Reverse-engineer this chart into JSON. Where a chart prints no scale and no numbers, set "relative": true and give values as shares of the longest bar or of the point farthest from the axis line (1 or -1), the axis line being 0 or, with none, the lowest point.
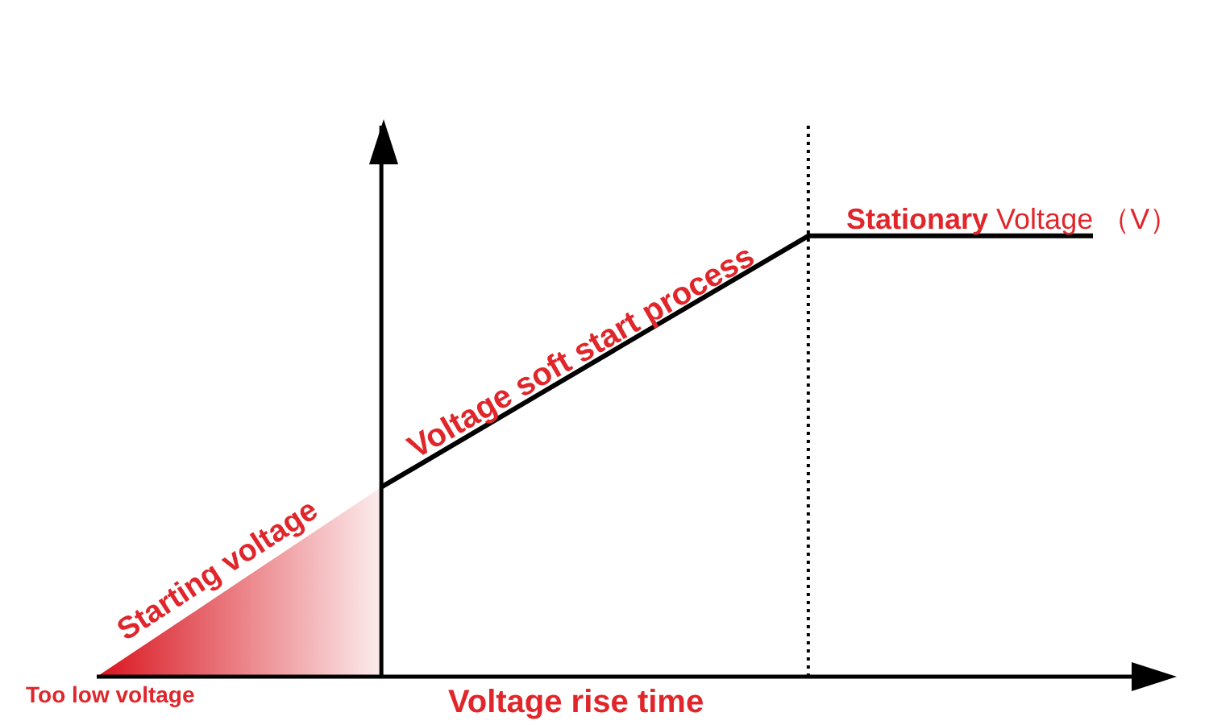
{
  "chart_data": {
    "type": "line",
    "relative": true,
    "xlabel": "Voltage rise time",
    "categories": [
      null,
      null,
      null,
      null,
      null,
      null,
      null,
      null
    ],
    "series": [
      {
        "type": "area",
        "color": "#d9141e",
        "values": [
          0,
          0.215,
          0.43,
          null,
          null,
          null,
          null,
          null
        ]
      },
      {
        "color": "#000000",
        "values": [
          null,
          null,
          0.43,
          0.62,
          0.81,
          1,
          1,
          1
        ]
      }
    ],
    "annotations": [
      "Stationary Voltage （V）",
      "Voltage soft start process",
      "Starting voltage",
      "Too low voltage"
    ]
  }
}
